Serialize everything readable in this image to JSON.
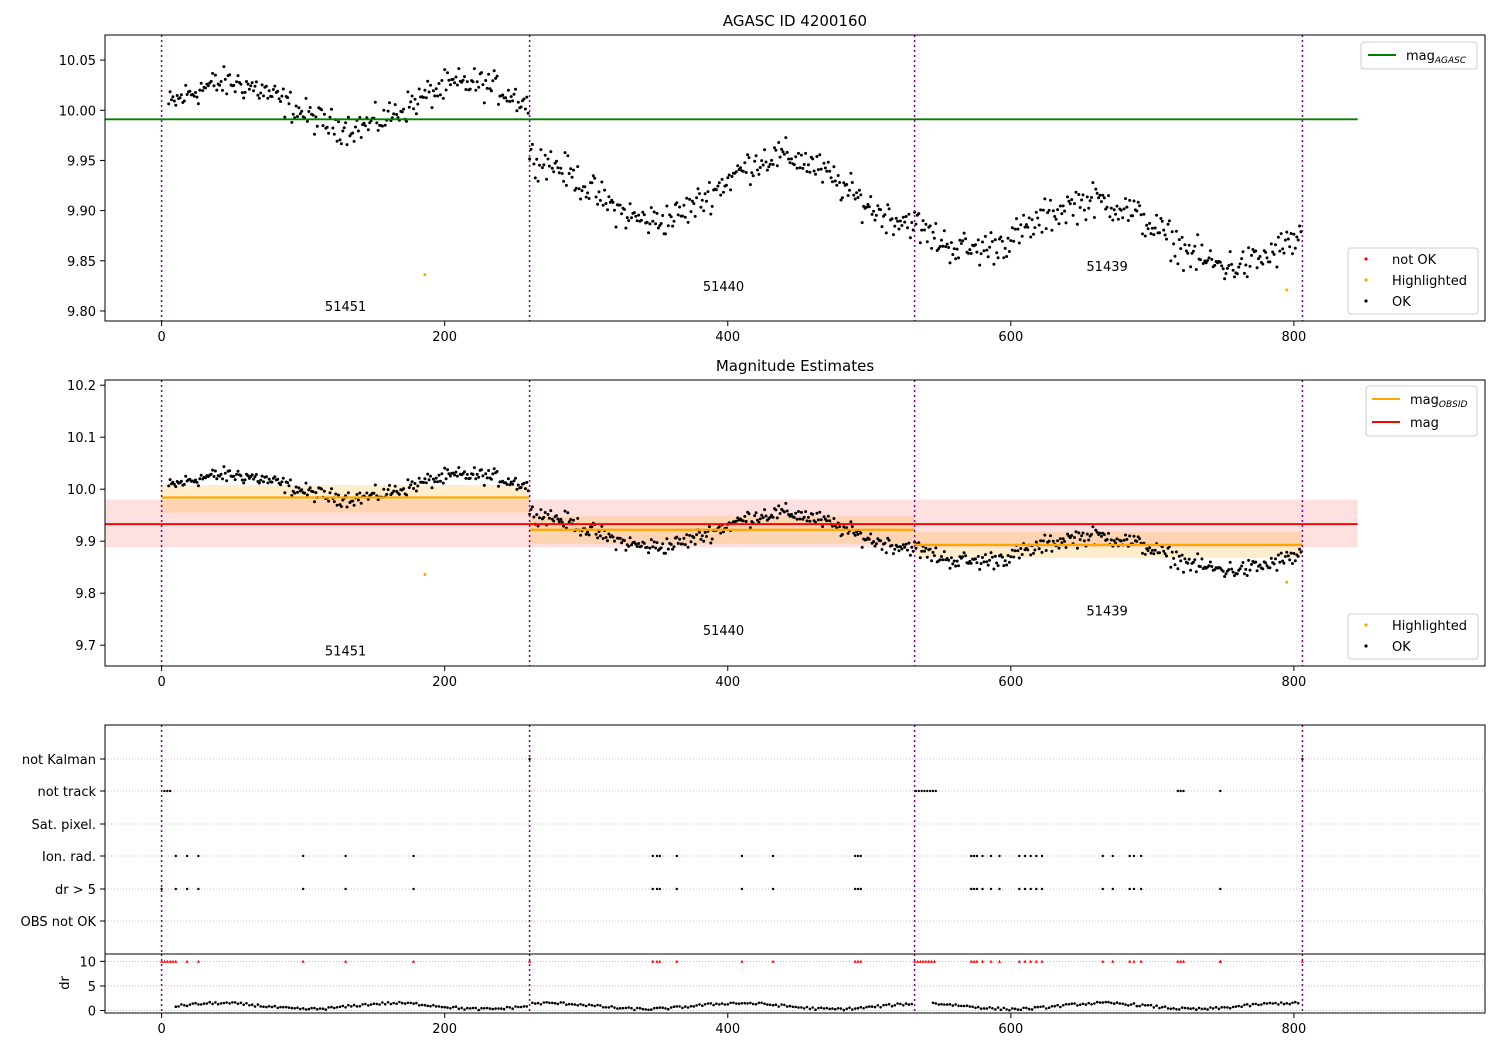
{
  "chart_data": [
    {
      "type": "scatter",
      "title": "AGASC ID 4200160",
      "xlabel": "",
      "ylabel": "",
      "xlim": [
        -40,
        935
      ],
      "ylim": [
        9.79,
        10.075
      ],
      "xticks": [
        0,
        200,
        400,
        600,
        800
      ],
      "yticks": [
        9.8,
        9.85,
        9.9,
        9.95,
        10.0,
        10.05
      ],
      "ytick_labels": [
        "9.80",
        "9.85",
        "9.90",
        "9.95",
        "10.00",
        "10.05"
      ],
      "vlines": [
        0,
        260,
        532,
        806
      ],
      "hline": {
        "label": "mag",
        "sub": "AGASC",
        "y": 9.991,
        "x": [
          -40,
          845
        ],
        "color": "#008000"
      },
      "segment_labels": [
        {
          "text": "51451",
          "x": 130,
          "y": 9.8
        },
        {
          "text": "51440",
          "x": 397,
          "y": 9.82
        },
        {
          "text": "51439",
          "x": 668,
          "y": 9.84
        }
      ],
      "legend_upper": [
        {
          "name": "mag",
          "sub": "AGASC",
          "color": "#008000"
        }
      ],
      "legend_lower": [
        {
          "name": "not OK",
          "color": "#ff0000"
        },
        {
          "name": "Highlighted",
          "color": "#ffa500"
        },
        {
          "name": "OK",
          "color": "#000000"
        }
      ],
      "highlighted": [
        [
          186,
          9.836
        ],
        [
          795,
          9.821
        ]
      ],
      "trend_segments": [
        {
          "x0": 5,
          "x1": 260,
          "mean": 10.005,
          "amp": 0.022,
          "noise": 0.013
        },
        {
          "x0": 260,
          "x1": 532,
          "mean": 9.922,
          "amp": 0.032,
          "noise": 0.014
        },
        {
          "x0": 532,
          "x1": 806,
          "mean": 9.893,
          "amp": 0.028,
          "noise": 0.015
        }
      ]
    },
    {
      "type": "scatter",
      "title": "Magnitude Estimates",
      "xlabel": "",
      "ylabel": "",
      "xlim": [
        -40,
        935
      ],
      "ylim": [
        9.66,
        10.21
      ],
      "xticks": [
        0,
        200,
        400,
        600,
        800
      ],
      "yticks": [
        9.7,
        9.8,
        9.9,
        10.0,
        10.1,
        10.2
      ],
      "ytick_labels": [
        "9.7",
        "9.8",
        "9.9",
        "10.0",
        "10.1",
        "10.2"
      ],
      "vlines": [
        0,
        260,
        532,
        806
      ],
      "mag_line": {
        "y": 9.933,
        "band": [
          9.888,
          9.98
        ],
        "x": [
          -40,
          845
        ],
        "color": "#ff0000"
      },
      "obsid_segments": [
        {
          "x0": 0,
          "x1": 260,
          "y": 9.984,
          "band": [
            9.955,
            10.008
          ]
        },
        {
          "x0": 260,
          "x1": 532,
          "y": 9.922,
          "band": [
            9.895,
            9.948
          ]
        },
        {
          "x0": 532,
          "x1": 806,
          "y": 9.893,
          "band": [
            9.868,
            9.918
          ]
        }
      ],
      "segment_labels": [
        {
          "text": "51451",
          "x": 130,
          "y": 9.68
        },
        {
          "text": "51440",
          "x": 397,
          "y": 9.72
        },
        {
          "text": "51439",
          "x": 668,
          "y": 9.757
        }
      ],
      "legend_upper": [
        {
          "name": "mag",
          "sub": "OBSID",
          "color": "#ffa500"
        },
        {
          "name": "mag",
          "sub": "",
          "color": "#ff0000"
        }
      ],
      "legend_lower": [
        {
          "name": "Highlighted",
          "color": "#ffa500"
        },
        {
          "name": "OK",
          "color": "#000000"
        }
      ],
      "highlighted": [
        [
          186,
          9.836
        ],
        [
          795,
          9.821
        ]
      ]
    },
    {
      "type": "scatter",
      "title": "",
      "xlabel": "",
      "ylabel": "",
      "xlim": [
        -40,
        935
      ],
      "xticks": [
        0,
        200,
        400,
        600,
        800
      ],
      "flag_categories": [
        "not Kalman",
        "not track",
        "Sat. pixel.",
        "Ion. rad.",
        "dr > 5",
        "OBS not OK"
      ],
      "flags": {
        "not Kalman": [
          260,
          806
        ],
        "not track": [
          2,
          4,
          6,
          533,
          535,
          537,
          539,
          541,
          543,
          545,
          547,
          718,
          720,
          722,
          748
        ],
        "Sat. pixel.": [],
        "Ion. rad.": [
          10,
          18,
          26,
          100,
          130,
          178,
          347,
          350,
          352,
          364,
          410,
          432,
          490,
          492,
          494,
          572,
          574,
          576,
          580,
          586,
          592,
          606,
          610,
          614,
          618,
          622,
          665,
          672,
          684,
          687,
          692
        ],
        "dr > 5": [
          0,
          10,
          18,
          26,
          100,
          130,
          178,
          347,
          350,
          352,
          364,
          410,
          432,
          490,
          492,
          494,
          572,
          574,
          576,
          580,
          586,
          592,
          606,
          610,
          614,
          618,
          622,
          665,
          672,
          684,
          687,
          692,
          748
        ],
        "OBS not OK": []
      },
      "dr_axis": {
        "ylabel": "dr",
        "ylim": [
          -0.5,
          11.5
        ],
        "yticks": [
          0,
          5,
          10
        ]
      },
      "dr_clipped_x": [
        0,
        2,
        4,
        6,
        8,
        10,
        18,
        26,
        100,
        130,
        178,
        260,
        347,
        350,
        352,
        364,
        410,
        432,
        490,
        492,
        494,
        532,
        534,
        536,
        538,
        540,
        542,
        544,
        546,
        572,
        574,
        576,
        580,
        586,
        592,
        606,
        610,
        614,
        618,
        622,
        665,
        672,
        684,
        687,
        692,
        718,
        720,
        722,
        748,
        748,
        806
      ]
    }
  ]
}
